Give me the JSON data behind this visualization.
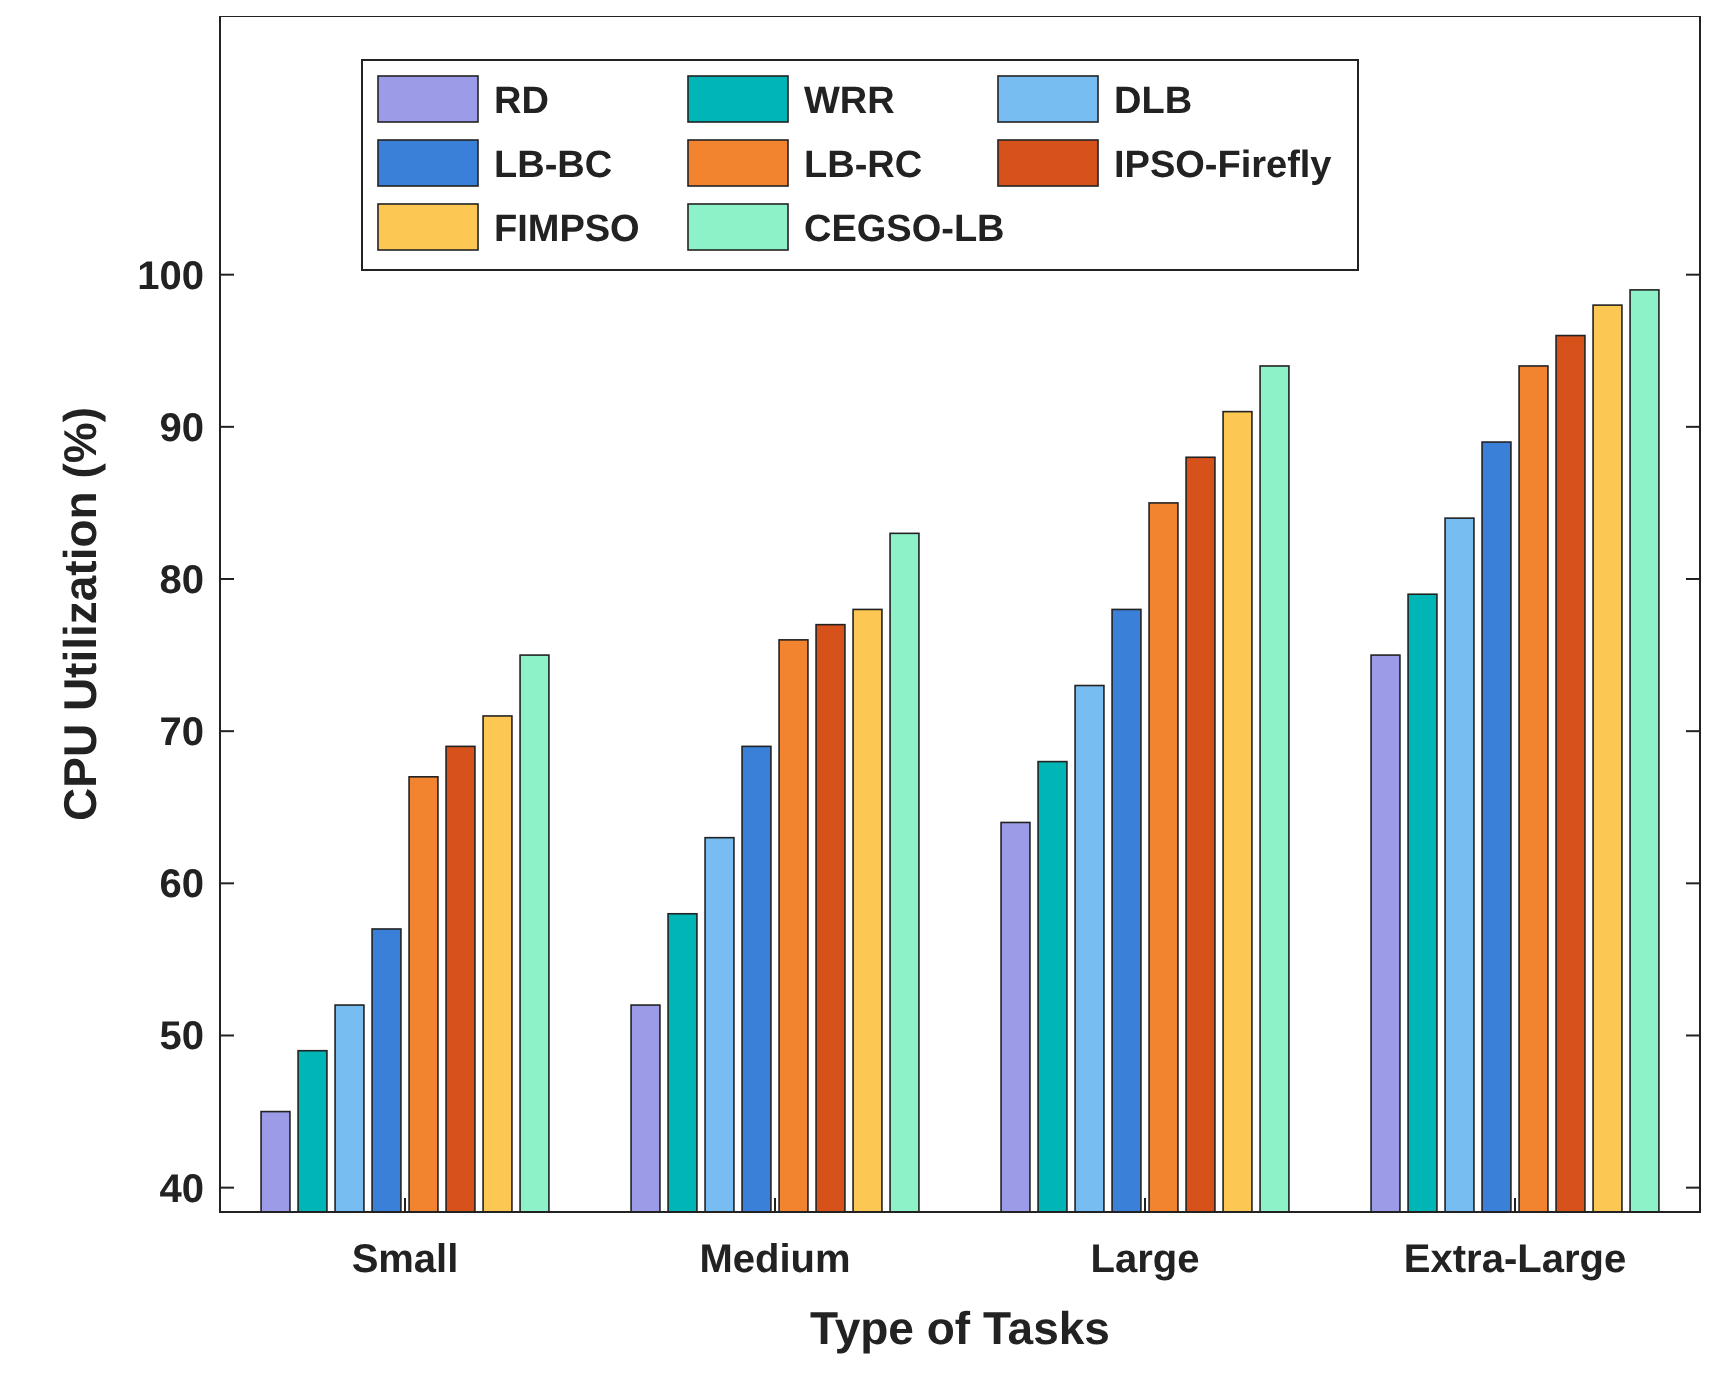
{
  "chart_data": {
    "type": "bar",
    "xlabel": "Type of Tasks",
    "ylabel": "CPU Utilization (%)",
    "categories": [
      "Small",
      "Medium",
      "Large",
      "Extra-Large"
    ],
    "series": [
      {
        "name": "RD",
        "color": "#9b9be8",
        "values": [
          45,
          52,
          64,
          75
        ]
      },
      {
        "name": "WRR",
        "color": "#00b5b5",
        "values": [
          49,
          58,
          68,
          79
        ]
      },
      {
        "name": "DLB",
        "color": "#78bdf2",
        "values": [
          52,
          63,
          73,
          84
        ]
      },
      {
        "name": "LB-BC",
        "color": "#3a80d8",
        "values": [
          57,
          69,
          78,
          89
        ]
      },
      {
        "name": "LB-RC",
        "color": "#f28430",
        "values": [
          67,
          76,
          85,
          94
        ]
      },
      {
        "name": "IPSO-Firefly",
        "color": "#d6521a",
        "values": [
          69,
          77,
          88,
          96
        ]
      },
      {
        "name": "FIMPSO",
        "color": "#fcc853",
        "values": [
          71,
          78,
          91,
          98
        ]
      },
      {
        "name": "CEGSO-LB",
        "color": "#8ef2c8",
        "values": [
          75,
          83,
          94,
          99
        ]
      }
    ],
    "ylim": [
      38.4,
      117
    ],
    "yticks": [
      40,
      50,
      60,
      70,
      80,
      90,
      100
    ],
    "grid": false,
    "legend": "top"
  }
}
